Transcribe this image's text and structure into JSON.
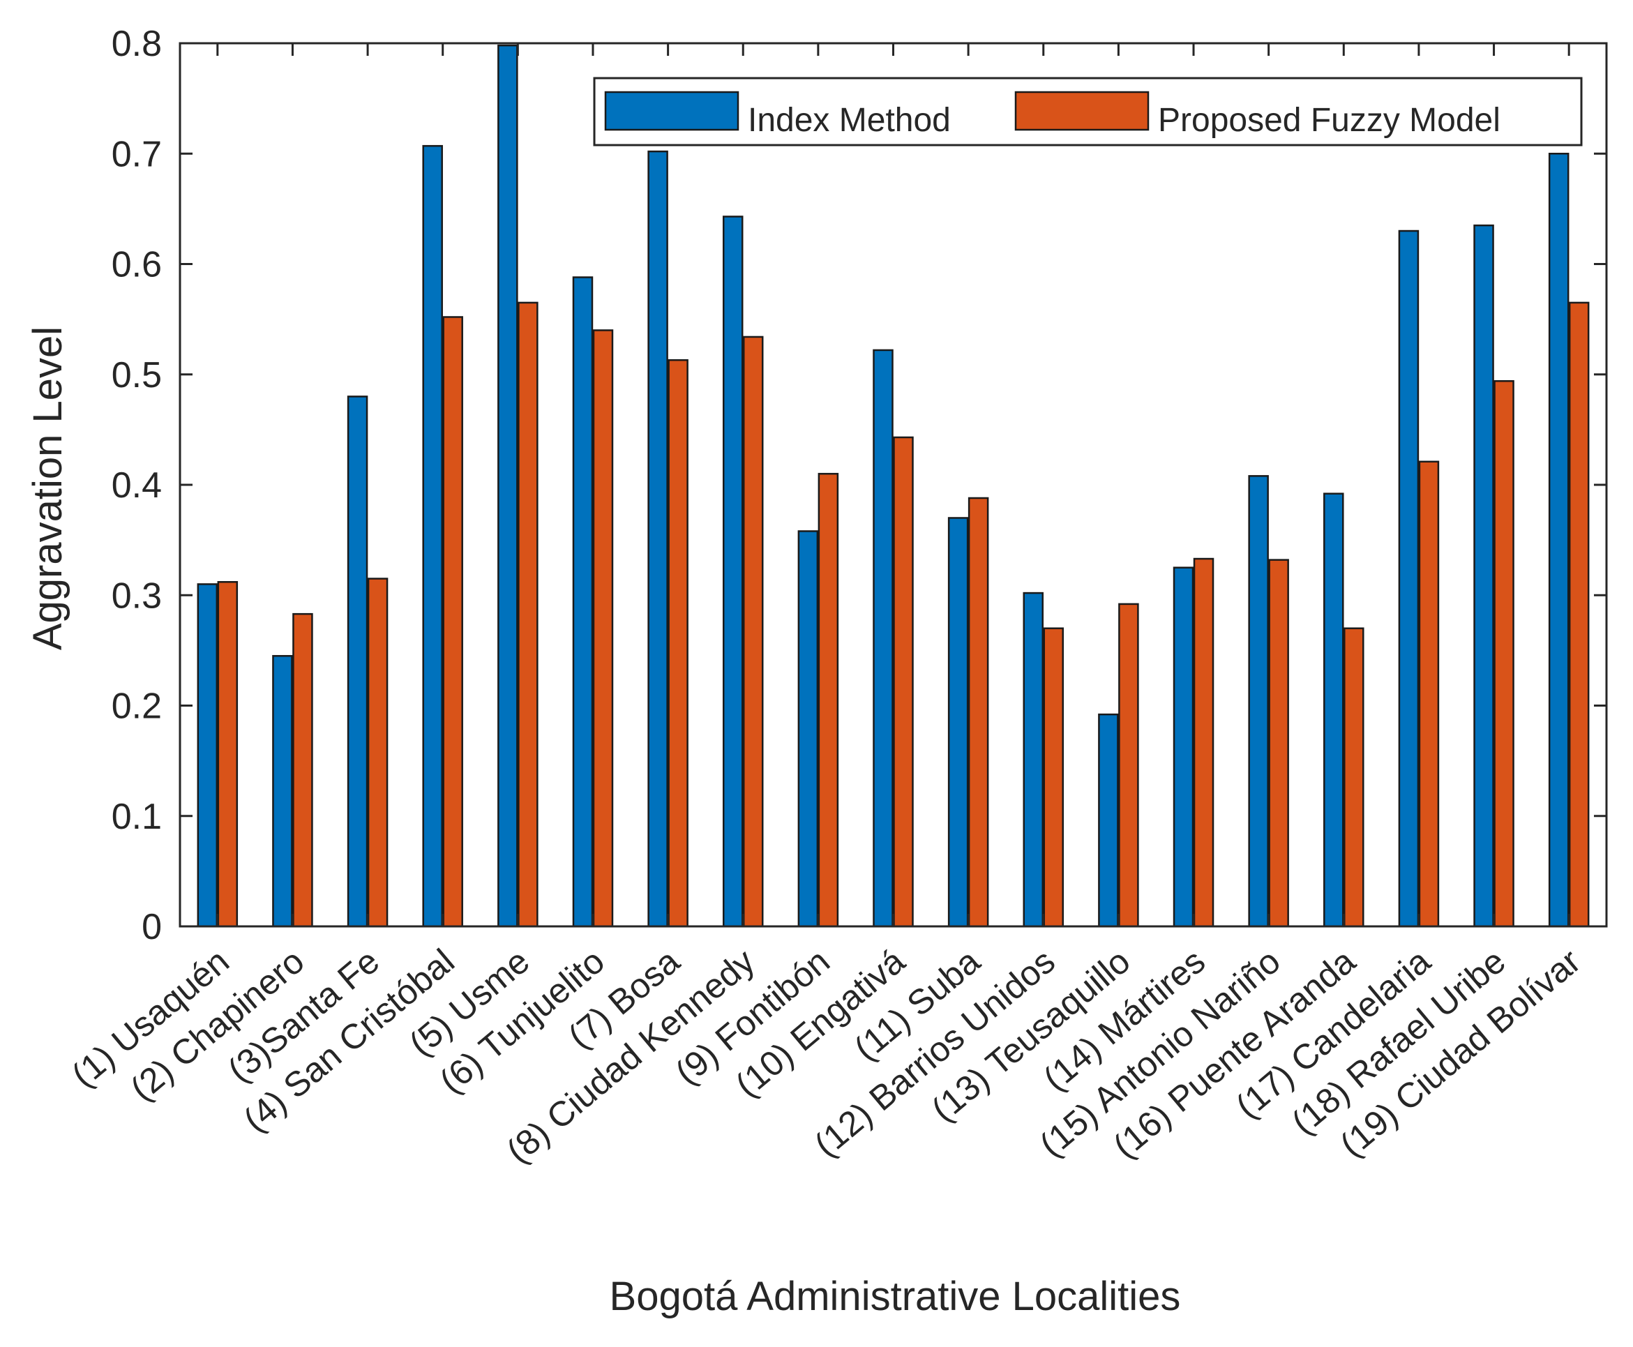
{
  "chart_data": {
    "type": "bar",
    "title": "",
    "xlabel": "Bogotá Administrative Localities",
    "ylabel": "Aggravation Level",
    "ylim": [
      0,
      0.8
    ],
    "yticks": [
      "0",
      "0.1",
      "0.2",
      "0.3",
      "0.4",
      "0.5",
      "0.6",
      "0.7",
      "0.8"
    ],
    "grid": false,
    "legend_position": "top-right",
    "categories": [
      "(1) Usaquén",
      "(2) Chapinero",
      "(3)Santa Fe",
      "(4) San Cristóbal",
      "(5) Usme",
      "(6) Tunjuelito",
      "(7) Bosa",
      "(8) Ciudad Kennedy",
      "(9) Fontibón",
      "(10) Engativá",
      "(11) Suba",
      "(12) Barrios Unidos",
      "(13) Teusaquillo",
      "(14) Mártires",
      "(15) Antonio Nariño",
      "(16) Puente Aranda",
      "(17) Candelaria",
      "(18) Rafael Uribe",
      "(19) Ciudad Bolívar"
    ],
    "series": [
      {
        "name": "Index Method",
        "color": "#0072BD",
        "values": [
          0.31,
          0.245,
          0.48,
          0.707,
          0.798,
          0.588,
          0.702,
          0.643,
          0.358,
          0.522,
          0.37,
          0.302,
          0.192,
          0.325,
          0.408,
          0.392,
          0.63,
          0.635,
          0.7
        ]
      },
      {
        "name": "Proposed Fuzzy Model",
        "color": "#D95319",
        "values": [
          0.312,
          0.283,
          0.315,
          0.552,
          0.565,
          0.54,
          0.513,
          0.534,
          0.41,
          0.443,
          0.388,
          0.27,
          0.292,
          0.333,
          0.332,
          0.27,
          0.421,
          0.494,
          0.565
        ]
      }
    ]
  }
}
